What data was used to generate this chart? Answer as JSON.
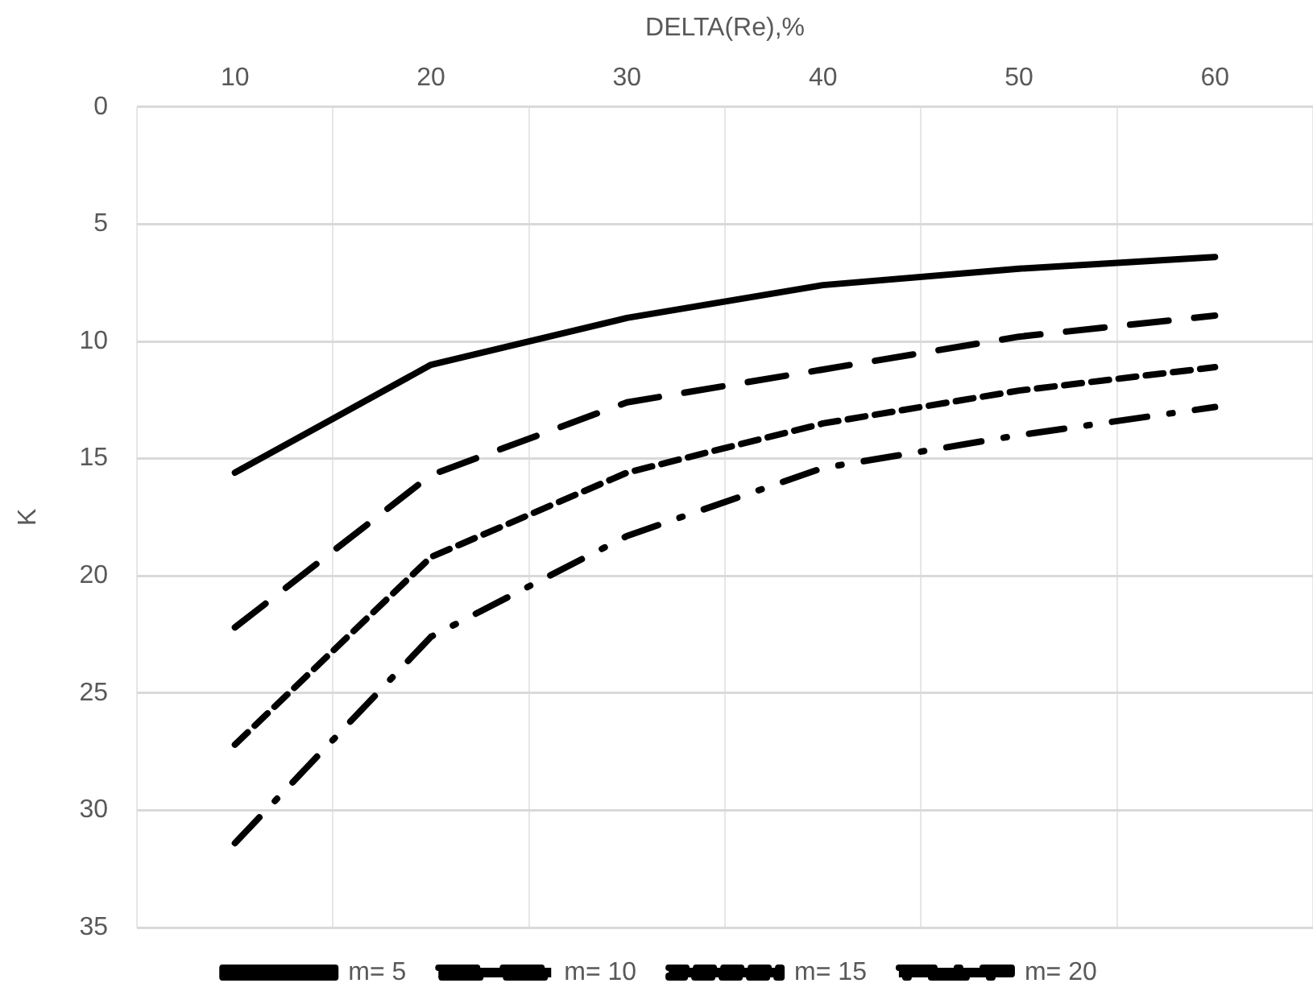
{
  "chart_data": {
    "type": "line",
    "xlabel": "DELTA(Re),%",
    "ylabel": "K",
    "categories": [
      "10",
      "20",
      "30",
      "40",
      "50",
      "60"
    ],
    "ylim": [
      35,
      0
    ],
    "yticks": [
      0,
      5,
      10,
      15,
      20,
      25,
      30,
      35
    ],
    "grid": true,
    "legend": "bottom",
    "marker": "none",
    "series": [
      {
        "name": "m= 5",
        "color": "#000000",
        "line_style": "solid",
        "values": [
          15.6,
          11.0,
          9.0,
          7.6,
          6.9,
          6.4
        ]
      },
      {
        "name": "m= 10",
        "color": "#000000",
        "line_style": "longdash",
        "values": [
          22.2,
          15.7,
          12.6,
          11.2,
          9.8,
          8.9
        ]
      },
      {
        "name": "m= 15",
        "color": "#000000",
        "line_style": "dashed",
        "values": [
          27.2,
          19.2,
          15.6,
          13.5,
          12.1,
          11.1
        ]
      },
      {
        "name": "m= 20",
        "color": "#000000",
        "line_style": "dashdot",
        "values": [
          31.4,
          22.6,
          18.3,
          15.4,
          14.0,
          12.8
        ]
      }
    ]
  }
}
